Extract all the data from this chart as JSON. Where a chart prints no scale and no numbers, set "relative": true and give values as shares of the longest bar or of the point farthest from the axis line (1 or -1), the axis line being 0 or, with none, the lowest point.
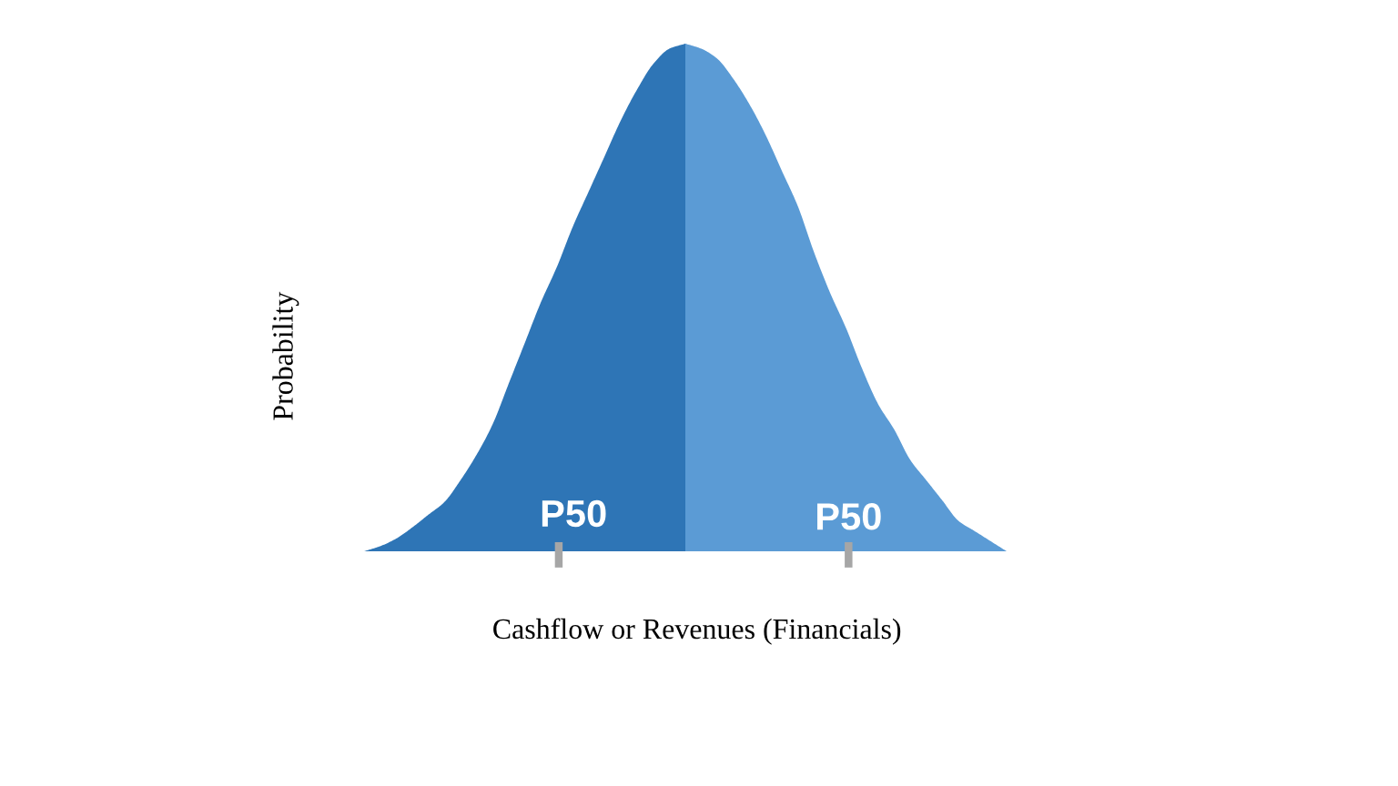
{
  "chart_data": {
    "type": "area",
    "relative": true,
    "xlabel": "Cashflow or Revenues (Financials)",
    "ylabel": "Probability",
    "categories": [
      null,
      null,
      null,
      null,
      null,
      null,
      null,
      null,
      null,
      null,
      null,
      null,
      null,
      null,
      null,
      null,
      null,
      null,
      null,
      null,
      null,
      null,
      null,
      null,
      null,
      null,
      null,
      null,
      null,
      null,
      null,
      null,
      null,
      null,
      null,
      null,
      null,
      null,
      null,
      null,
      null
    ],
    "series": [
      {
        "color": "#2e75b6",
        "values": [
          0,
          0.01,
          0.025,
          0.047,
          0.072,
          0.097,
          0.14,
          0.19,
          0.25,
          0.33,
          0.41,
          0.49,
          0.56,
          0.64,
          0.71,
          0.78,
          0.85,
          0.91,
          0.96,
          0.99,
          1.0,
          null,
          null,
          null,
          null,
          null,
          null,
          null,
          null,
          null,
          null,
          null,
          null,
          null,
          null,
          null,
          null,
          null,
          null,
          null,
          null
        ]
      },
      {
        "color": "#5b9bd5",
        "values": [
          null,
          null,
          null,
          null,
          null,
          null,
          null,
          null,
          null,
          null,
          null,
          null,
          null,
          null,
          null,
          null,
          null,
          null,
          null,
          null,
          1.0,
          0.99,
          0.97,
          0.93,
          0.88,
          0.82,
          0.75,
          0.68,
          0.59,
          0.51,
          0.44,
          0.36,
          0.29,
          0.24,
          0.18,
          0.14,
          0.1,
          0.06,
          0.04,
          0.02,
          0
        ]
      }
    ],
    "annotations": [
      "P50",
      "P50"
    ]
  }
}
